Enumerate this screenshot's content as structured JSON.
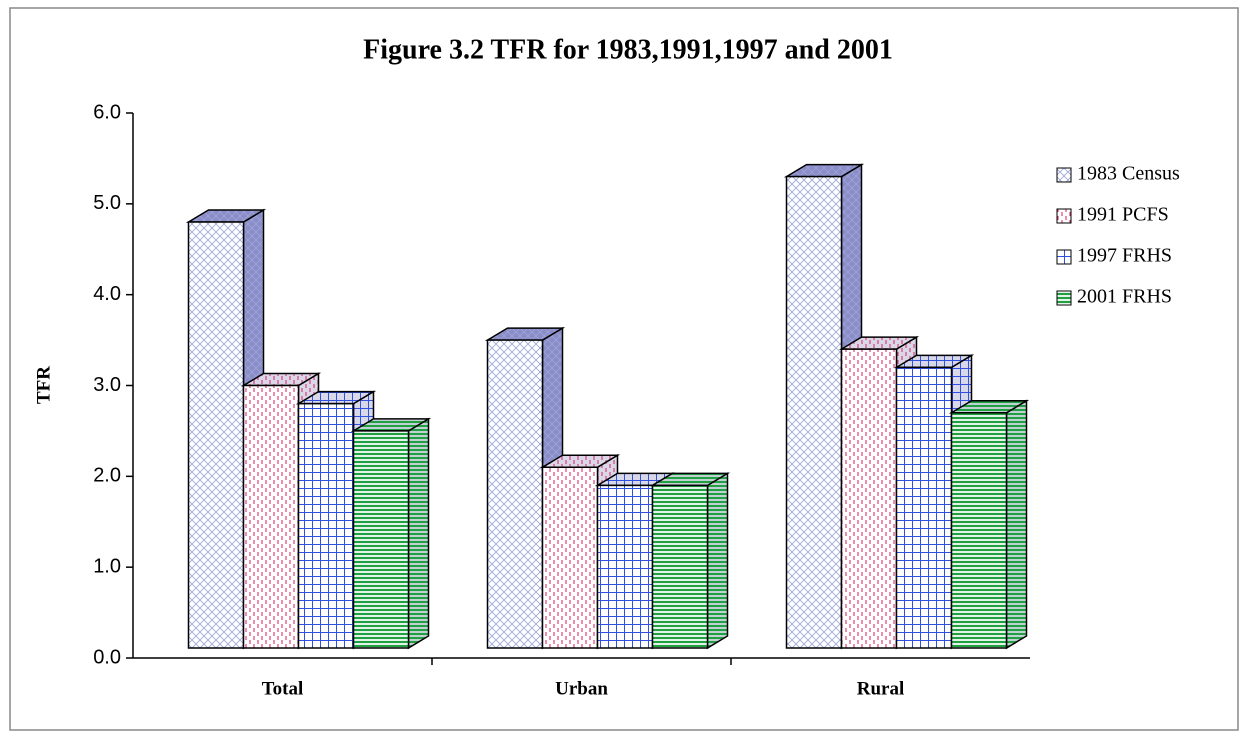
{
  "chart_data": {
    "type": "bar3d",
    "title": "Figure 3.2  TFR for 1983,1991,1997 and 2001",
    "ylabel": "TFR",
    "categories": [
      "Total",
      "Urban",
      "Rural"
    ],
    "series": [
      {
        "name": "1983 Census",
        "color": "#9aa6d8",
        "values": [
          4.8,
          3.5,
          5.3
        ]
      },
      {
        "name": "1991 PCFS",
        "color": "#e0407a",
        "values": [
          3.0,
          2.1,
          3.4
        ]
      },
      {
        "name": "1997 FRHS",
        "color": "#3050e0",
        "values": [
          2.8,
          1.9,
          3.2
        ]
      },
      {
        "name": "2001 FRHS",
        "color": "#20a040",
        "values": [
          2.5,
          1.9,
          2.7
        ]
      }
    ],
    "ylim": [
      0,
      6
    ],
    "yticks": [
      {
        "value": 0,
        "label": "0.0"
      },
      {
        "value": 1,
        "label": "1.0"
      },
      {
        "value": 2,
        "label": "2.0"
      },
      {
        "value": 3,
        "label": "3.0"
      },
      {
        "value": 4,
        "label": "4.0"
      },
      {
        "value": 5,
        "label": "5.0"
      },
      {
        "value": 6,
        "label": "6.0"
      }
    ],
    "legend": "right"
  }
}
